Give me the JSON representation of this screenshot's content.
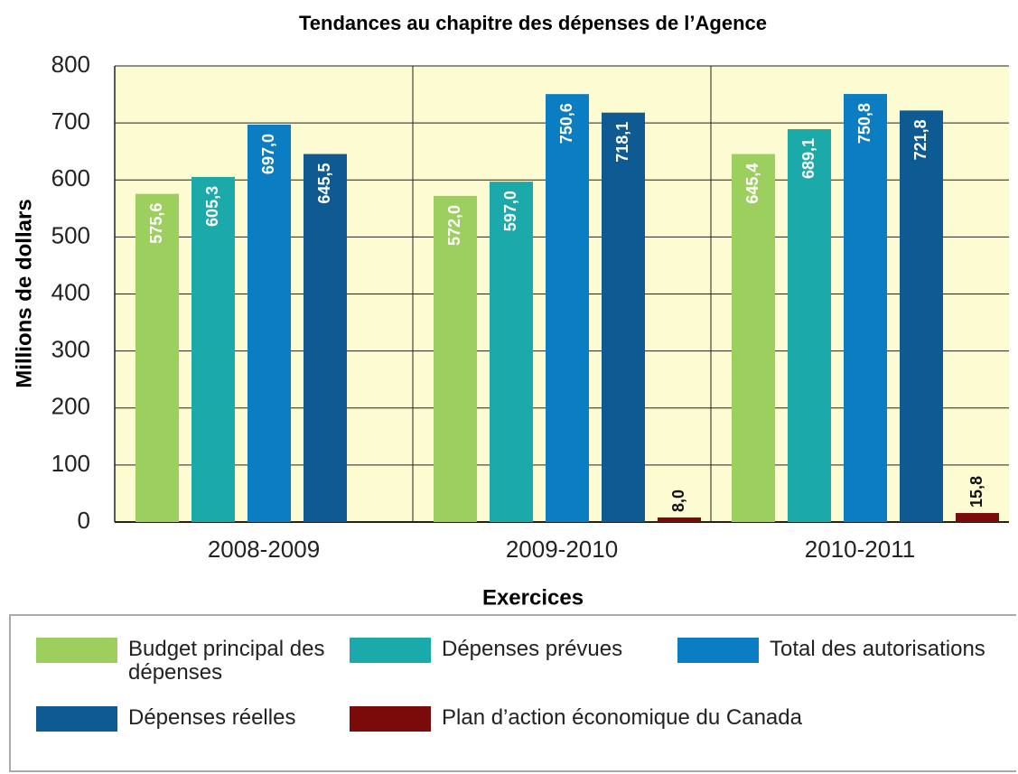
{
  "chart_data": {
    "type": "bar",
    "title": "Tendances au chapitre des dépenses de l’Agence",
    "x_label": "Exercices",
    "y_label": "Millions de dollars",
    "categories": [
      "2008-2009",
      "2009-2010",
      "2010-2011"
    ],
    "series": [
      {
        "name": "Budget principal des dépenses",
        "color": "#9dcf5e",
        "values": [
          575.6,
          572.0,
          645.4
        ],
        "value_labels": [
          "575,6",
          "572,0",
          "645,4"
        ]
      },
      {
        "name": "Dépenses prévues",
        "color": "#1ba9aa",
        "values": [
          605.3,
          597.0,
          689.1
        ],
        "value_labels": [
          "605,3",
          "597,0",
          "689,1"
        ]
      },
      {
        "name": "Total des autorisations",
        "color": "#0b7dc2",
        "values": [
          697.0,
          750.6,
          750.8
        ],
        "value_labels": [
          "697,0",
          "750,6",
          "750,8"
        ]
      },
      {
        "name": "Dépenses réelles",
        "color": "#0e5a93",
        "values": [
          645.5,
          718.1,
          721.8
        ],
        "value_labels": [
          "645,5",
          "718,1",
          "721,8"
        ]
      },
      {
        "name": "Plan d’action économique du Canada",
        "color": "#7b0b0b",
        "values": [
          null,
          8.0,
          15.8
        ],
        "value_labels": [
          null,
          "8,0",
          "15,8"
        ]
      }
    ],
    "ylim": [
      0,
      800
    ],
    "yticks": [
      0,
      100,
      200,
      300,
      400,
      500,
      600,
      700,
      800
    ],
    "grid": true
  }
}
